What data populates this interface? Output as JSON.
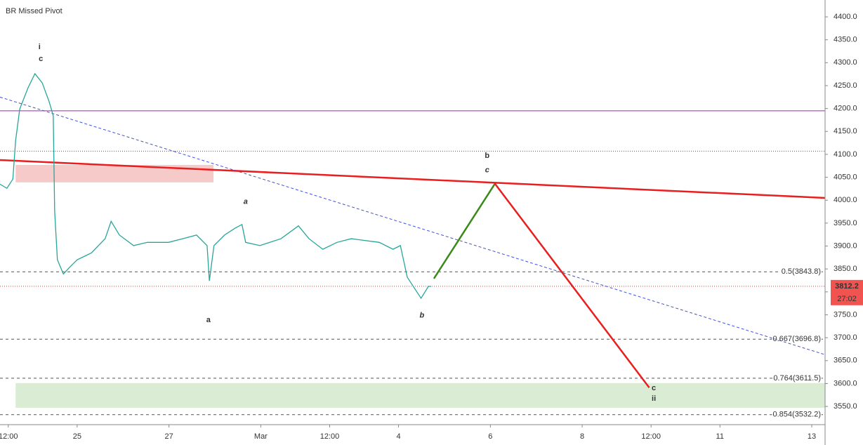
{
  "chart_data": {
    "type": "line",
    "title": "BR Missed Pivot",
    "x": [
      -5.68,
      -5.53,
      -5.4,
      -5.34,
      -5.25,
      -5.07,
      -4.92,
      -4.76,
      -4.61,
      -4.52,
      -4.49,
      -4.43,
      -4.3,
      -4.15,
      -4.0,
      -3.69,
      -3.39,
      -3.26,
      -3.08,
      -2.77,
      -2.47,
      -2.01,
      -1.7,
      -1.4,
      -1.17,
      -1.12,
      -1.02,
      -0.79,
      -0.56,
      -0.41,
      -0.33,
      -0.02,
      0.44,
      0.82,
      1.05,
      1.35,
      1.66,
      1.97,
      2.58,
      2.88,
      3.04,
      3.19,
      3.34,
      3.49,
      3.65,
      3.71
    ],
    "values": [
      4035,
      4026,
      4046,
      4130,
      4199,
      4245,
      4276,
      4256,
      4215,
      4184,
      3977,
      3870,
      3839,
      3855,
      3870,
      3885,
      3916,
      3954,
      3924,
      3901,
      3908,
      3908,
      3916,
      3924,
      3901,
      3824,
      3901,
      3924,
      3939,
      3947,
      3908,
      3901,
      3916,
      3944,
      3916,
      3893,
      3908,
      3916,
      3908,
      3893,
      3901,
      3832,
      3809,
      3786,
      3812,
      3812
    ],
    "color": "#26a69a",
    "xlim": [
      -5.68,
      12.29
    ],
    "ylim": [
      3510.3,
      4436.8
    ],
    "xticks": [
      {
        "value": -5.5,
        "label": "12:00"
      },
      {
        "value": -4,
        "label": "25"
      },
      {
        "value": -2,
        "label": "27"
      },
      {
        "value": 0,
        "label": "Mar"
      },
      {
        "value": 1.5,
        "label": "12:00"
      },
      {
        "value": 3,
        "label": "4"
      },
      {
        "value": 5,
        "label": "6"
      },
      {
        "value": 7,
        "label": "8"
      },
      {
        "value": 8.5,
        "label": "12:00"
      },
      {
        "value": 10,
        "label": "11"
      },
      {
        "value": 12,
        "label": "13"
      }
    ],
    "yticks": [
      {
        "value": 3550,
        "label": "3550.0"
      },
      {
        "value": 3600,
        "label": "3600.0"
      },
      {
        "value": 3650,
        "label": "3650.0"
      },
      {
        "value": 3700,
        "label": "3700.0"
      },
      {
        "value": 3750,
        "label": "3750.0"
      },
      {
        "value": 3800,
        "label": "3800.0"
      },
      {
        "value": 3850,
        "label": "3850.0"
      },
      {
        "value": 3900,
        "label": "3900.0"
      },
      {
        "value": 3950,
        "label": "3950.0"
      },
      {
        "value": 4000,
        "label": "4000.0"
      },
      {
        "value": 4050,
        "label": "4050.0"
      },
      {
        "value": 4100,
        "label": "4100.0"
      },
      {
        "value": 4150,
        "label": "4150.0"
      },
      {
        "value": 4200,
        "label": "4200.0"
      },
      {
        "value": 4250,
        "label": "4250.0"
      },
      {
        "value": 4300,
        "label": "4300.0"
      },
      {
        "value": 4350,
        "label": "4350.0"
      },
      {
        "value": 4400,
        "label": "4400.0"
      }
    ],
    "levels": [
      {
        "value": 4195,
        "color": "#9c27b0"
      },
      {
        "value": 4107,
        "color": "#555"
      },
      {
        "value": 3843.8,
        "label": "0.5(3843.8)",
        "color": "#555"
      },
      {
        "value": 3696.8,
        "label": "0.667(3696.8)",
        "color": "#555"
      },
      {
        "value": 3611.5,
        "label": "0.764(3611.5)",
        "color": "#555"
      },
      {
        "value": 3532.2,
        "label": "0.854(3532.2)",
        "color": "#555"
      }
    ],
    "zones": [
      {
        "x": [
          -5.34,
          -1.03
        ],
        "values": [
          4077,
          4039
        ],
        "color": "rgba(230,80,80,0.3)"
      },
      {
        "x": [
          -5.34,
          12.29
        ],
        "values": [
          3601,
          3547
        ],
        "color": "rgba(150,200,130,0.35)"
      }
    ],
    "lines": [
      {
        "x": [
          -5.68,
          12.29
        ],
        "values": [
          4087.6,
          4005
        ],
        "color": "#e91e1e",
        "width": 2.5,
        "dash": "none"
      },
      {
        "x": [
          -5.68,
          12.29
        ],
        "values": [
          4225,
          3663
        ],
        "color": "#3f51d8",
        "width": 1,
        "dash": "4 3"
      },
      {
        "x": [
          3.77,
          5.1
        ],
        "values": [
          3829,
          4036
        ],
        "color": "#3a8a1a",
        "width": 2.5,
        "dash": "none"
      },
      {
        "x": [
          5.1,
          8.46
        ],
        "values": [
          4036,
          3591
        ],
        "color": "#e91e1e",
        "width": 2.5,
        "dash": "none"
      }
    ],
    "price": 3812.2,
    "countdown": "27:02",
    "annotations": [
      {
        "text": "i",
        "x": -4.82,
        "y": 4334,
        "color": "#1a1adb"
      },
      {
        "text": "c",
        "x": -4.79,
        "y": 4308,
        "color": "#1a1adb"
      },
      {
        "text": "a",
        "x": -0.33,
        "y": 3996,
        "color": "#e01010",
        "italic": true
      },
      {
        "text": "a",
        "x": -1.14,
        "y": 3738,
        "color": "#1a1adb"
      },
      {
        "text": "b",
        "x": 3.51,
        "y": 3748,
        "color": "#e01010",
        "italic": true
      },
      {
        "text": "b",
        "x": 4.93,
        "y": 4097,
        "color": "#1a1adb"
      },
      {
        "text": "c",
        "x": 4.93,
        "y": 4065,
        "color": "#e01010",
        "italic": true
      },
      {
        "text": "c",
        "x": 8.56,
        "y": 3590,
        "color": "#1a1adb"
      },
      {
        "text": "ii",
        "x": 8.56,
        "y": 3567,
        "color": "#1a1adb"
      }
    ]
  }
}
